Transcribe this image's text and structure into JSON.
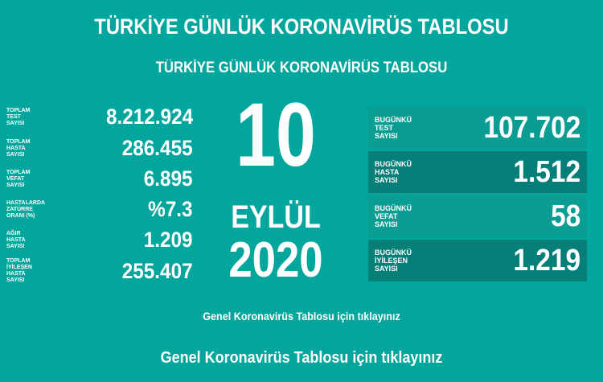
{
  "header": {
    "title": "TÜRKİYE GÜNLÜK KORONAVİRÜS TABLOSU",
    "subtitle": "TÜRKİYE GÜNLÜK KORONAVİRÜS TABLOSU"
  },
  "totals": [
    {
      "label": "TOPLAM\nTEST\nSAYISI",
      "value": "8.212.924"
    },
    {
      "label": "TOPLAM\nHASTA\nSAYISI",
      "value": "286.455"
    },
    {
      "label": "TOPLAM\nVEFAT\nSAYISI",
      "value": "6.895"
    },
    {
      "label": "HASTALARDA\nZATÜRRE\nORANI (%)",
      "value": "%7.3"
    },
    {
      "label": "AĞIR\nHASTA\nSAYISI",
      "value": "1.209"
    },
    {
      "label": "TOPLAM\nİYİLEŞEN\nHASTA\nSAYISI",
      "value": "255.407"
    }
  ],
  "date": {
    "day": "10",
    "month": "EYLÜL",
    "year": "2020"
  },
  "today": [
    {
      "label": "BUGÜNKÜ\nTEST\nSAYISI",
      "value": "107.702"
    },
    {
      "label": "BUGÜNKÜ\nHASTA\nSAYISI",
      "value": "1.512"
    },
    {
      "label": "BUGÜNKÜ\nVEFAT\nSAYISI",
      "value": "58"
    },
    {
      "label": "BUGÜNKÜ\nİYİLEŞEN\nSAYISI",
      "value": "1.219"
    }
  ],
  "links": {
    "small": "Genel Koronavirüs Tablosu için tıklayınız",
    "large": "Genel Koronavirüs Tablosu için tıklayınız"
  },
  "colors": {
    "background": "#02a69c",
    "box_light": "#0a9d93",
    "box_dark": "#057f78"
  }
}
